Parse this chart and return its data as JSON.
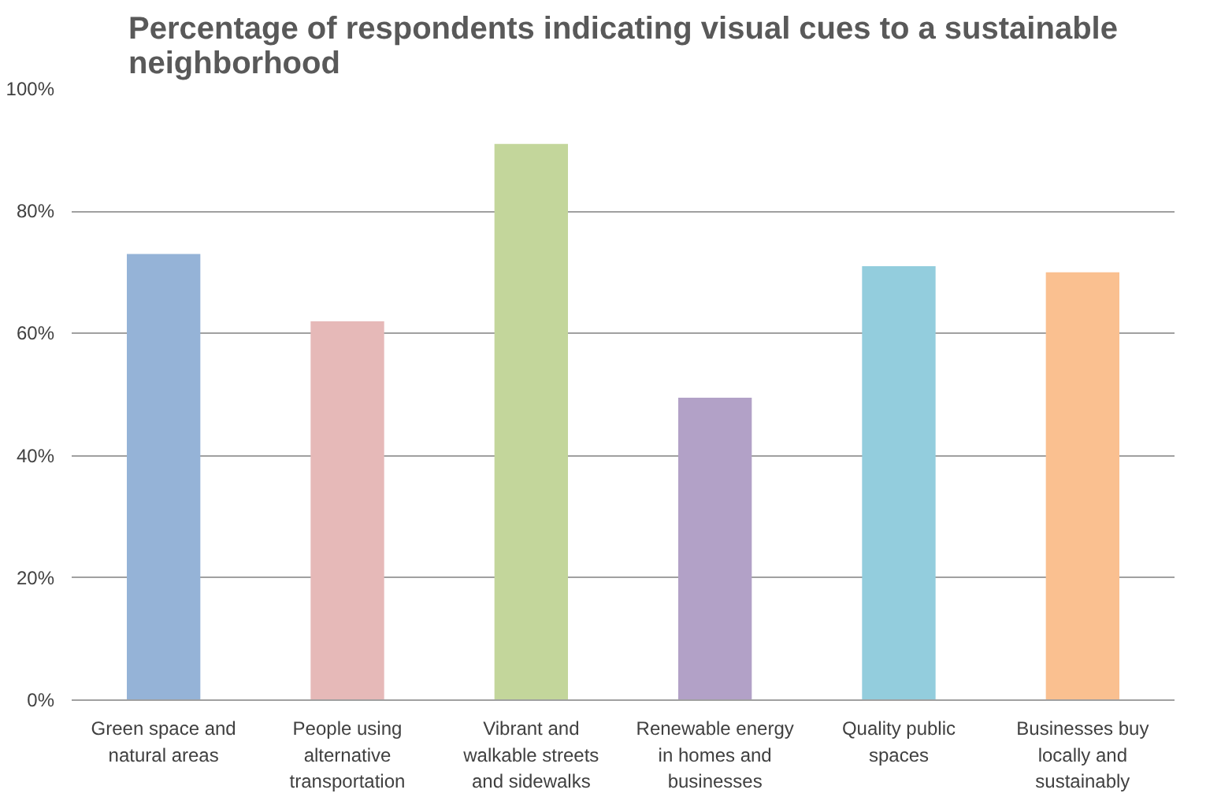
{
  "chart_data": {
    "type": "bar",
    "title": "Percentage of respondents indicating visual cues to a sustainable neighborhood",
    "categories": [
      "Green space and natural areas",
      "People using alternative transportation",
      "Vibrant and walkable streets and sidewalks",
      "Renewable energy in homes and businesses",
      "Quality public spaces",
      "Businesses buy locally and sustainably"
    ],
    "values": [
      73,
      62,
      91,
      49.5,
      71,
      70
    ],
    "colors": [
      "#95b3d7",
      "#e6b9b8",
      "#c3d69b",
      "#b2a1c7",
      "#93cddd",
      "#fac090"
    ],
    "ylim": [
      0,
      100
    ],
    "yticks": [
      {
        "value": 0,
        "label": "0%"
      },
      {
        "value": 20,
        "label": "20%"
      },
      {
        "value": 40,
        "label": "40%"
      },
      {
        "value": 60,
        "label": "60%"
      },
      {
        "value": 80,
        "label": "80%"
      },
      {
        "value": 100,
        "label": "100%"
      }
    ],
    "grid": "y"
  }
}
